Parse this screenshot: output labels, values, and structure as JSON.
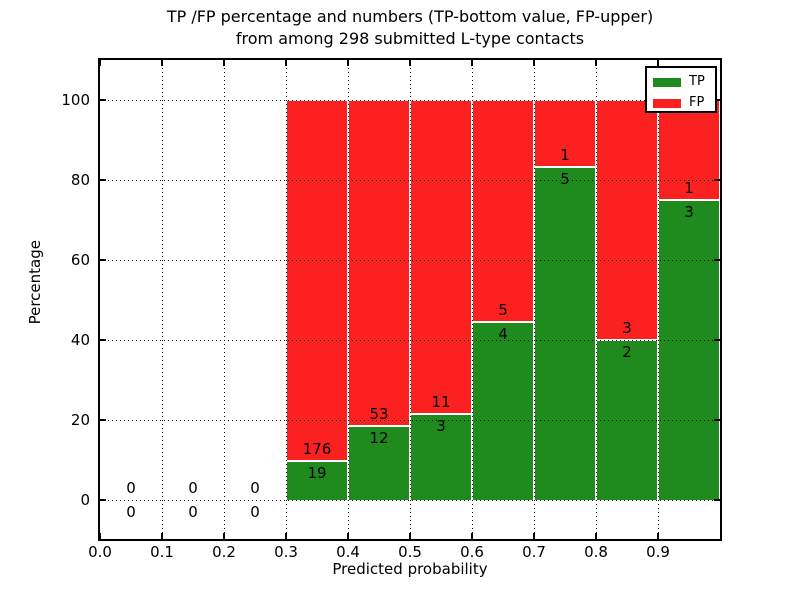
{
  "figure": {
    "title_line1": "TP /FP percentage and numbers (TP-bottom value, FP-upper)",
    "title_line2": "from among 298 submitted L-type contacts",
    "xlabel": "Predicted probability",
    "ylabel": "Percentage"
  },
  "colors": {
    "tp_green": "#1f8b1f",
    "fp_red": "#fb2121",
    "grid": "#000000",
    "frame": "#000000",
    "background": "#ffffff",
    "label_text": "#000000"
  },
  "chart_data": {
    "type": "bar",
    "variant": "stacked-percentage-histogram",
    "title": "TP /FP percentage and numbers (TP-bottom value, FP-upper) from among 298 submitted L-type contacts",
    "xlabel": "Predicted probability",
    "ylabel": "Percentage",
    "xlim": [
      0.0,
      1.0
    ],
    "ylim": [
      -10,
      110
    ],
    "x_ticks": [
      "0.0",
      "0.1",
      "0.2",
      "0.3",
      "0.4",
      "0.5",
      "0.6",
      "0.7",
      "0.8",
      "0.9"
    ],
    "y_ticks": [
      "0",
      "20",
      "40",
      "60",
      "80",
      "100"
    ],
    "grid": "dotted",
    "total_submitted": 298,
    "legend": {
      "position": "upper-right",
      "entries": [
        {
          "label": "TP",
          "color": "#1f8b1f"
        },
        {
          "label": "FP",
          "color": "#fb2121"
        }
      ]
    },
    "bins": [
      {
        "x_start": 0.0,
        "x_end": 0.1,
        "tp": 0,
        "fp": 0,
        "tp_percent": 0
      },
      {
        "x_start": 0.1,
        "x_end": 0.2,
        "tp": 0,
        "fp": 0,
        "tp_percent": 0
      },
      {
        "x_start": 0.2,
        "x_end": 0.3,
        "tp": 0,
        "fp": 0,
        "tp_percent": 0
      },
      {
        "x_start": 0.3,
        "x_end": 0.4,
        "tp": 19,
        "fp": 176,
        "tp_percent": 9.74
      },
      {
        "x_start": 0.4,
        "x_end": 0.5,
        "tp": 12,
        "fp": 53,
        "tp_percent": 18.46
      },
      {
        "x_start": 0.5,
        "x_end": 0.6,
        "tp": 3,
        "fp": 11,
        "tp_percent": 21.43
      },
      {
        "x_start": 0.6,
        "x_end": 0.7,
        "tp": 4,
        "fp": 5,
        "tp_percent": 44.44
      },
      {
        "x_start": 0.7,
        "x_end": 0.8,
        "tp": 5,
        "fp": 1,
        "tp_percent": 83.33
      },
      {
        "x_start": 0.8,
        "x_end": 0.9,
        "tp": 2,
        "fp": 3,
        "tp_percent": 40.0
      },
      {
        "x_start": 0.9,
        "x_end": 1.0,
        "tp": 3,
        "fp": 1,
        "tp_percent": 75.0
      }
    ]
  }
}
